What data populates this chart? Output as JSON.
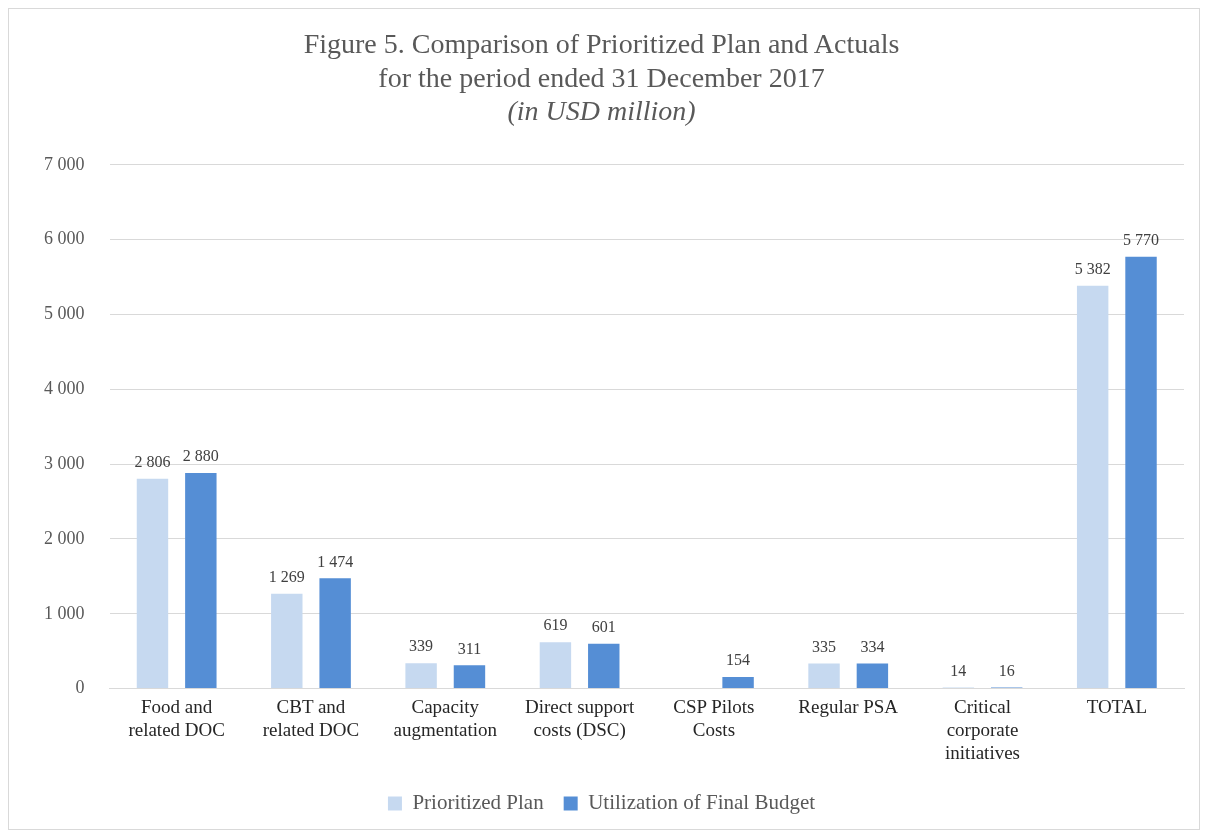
{
  "chart_data": {
    "type": "bar",
    "title": "Figure 5. Comparison of Prioritized Plan and Actuals\nfor the period ended 31 December 2017",
    "subtitle": "(in USD million)",
    "categories": [
      "Food and related DOC",
      "CBT and related DOC",
      "Capacity augmentation",
      "Direct support costs (DSC)",
      "CSP Pilots Costs",
      "Regular PSA",
      "Critical corporate initiatives",
      "TOTAL"
    ],
    "series": [
      {
        "name": "Prioritized Plan",
        "color": "#c6d9f0",
        "values": [
          2806,
          1269,
          339,
          619,
          null,
          335,
          14,
          5382
        ],
        "value_labels": [
          "2 806",
          "1 269",
          "339",
          "619",
          null,
          "335",
          "14",
          "5 382"
        ]
      },
      {
        "name": "Utilization of Final Budget",
        "color": "#558ed5",
        "values": [
          2880,
          1474,
          311,
          601,
          154,
          334,
          16,
          5770
        ],
        "value_labels": [
          "2 880",
          "1 474",
          "311",
          "601",
          "154",
          "334",
          "16",
          "5 770"
        ]
      }
    ],
    "ylim": [
      0,
      7000
    ],
    "yticks": [
      {
        "value": 0,
        "label": "0"
      },
      {
        "value": 1000,
        "label": "1 000"
      },
      {
        "value": 2000,
        "label": "2 000"
      },
      {
        "value": 3000,
        "label": "3 000"
      },
      {
        "value": 4000,
        "label": "4 000"
      },
      {
        "value": 5000,
        "label": "5 000"
      },
      {
        "value": 6000,
        "label": "6 000"
      },
      {
        "value": 7000,
        "label": "7 000"
      }
    ],
    "grid": "y",
    "legend": "bottom"
  }
}
